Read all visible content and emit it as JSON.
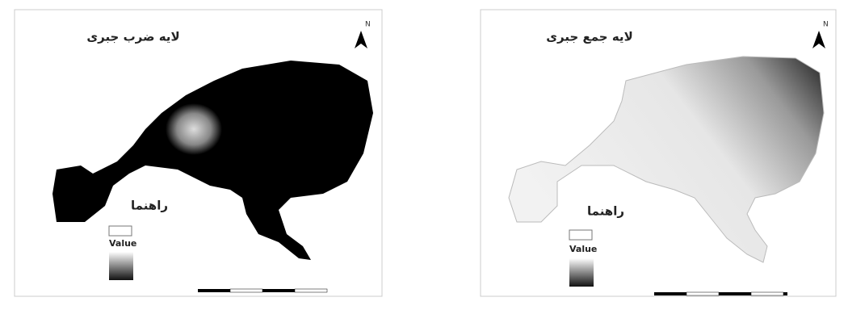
{
  "maps": [
    {
      "title": "لایه ضرب جبری",
      "north": "N",
      "legend": {
        "heading": "راهنما",
        "field": "Value"
      }
    },
    {
      "title": "لایه جمع جبری",
      "north": "N",
      "legend": {
        "heading": "راهنما",
        "field": "Value"
      }
    }
  ]
}
